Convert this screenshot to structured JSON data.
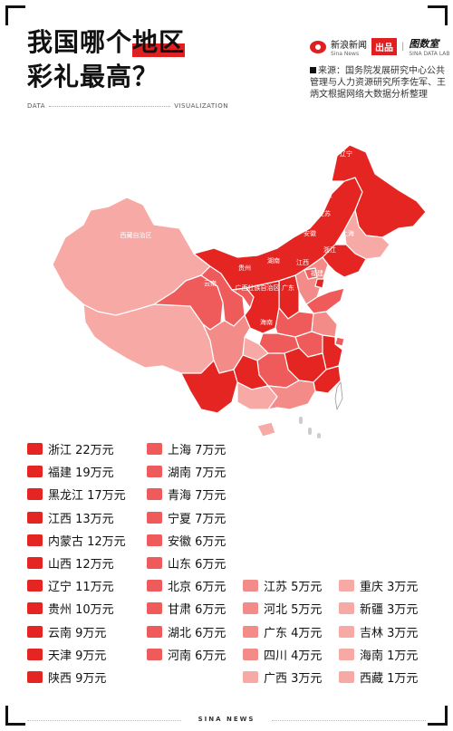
{
  "title": {
    "line1_a": "我国哪个",
    "line1_hl": "地区",
    "line2": "彩礼最高？"
  },
  "brand": {
    "name": "新浪新闻",
    "sub": "Sina News",
    "badge": "出品",
    "partner": "图数室",
    "partner_sub": "SINA DATA LAB"
  },
  "source": "来源：国务院发展研究中心公共管理与人力资源研究所李佐军、王炳文根据网络大数据分析整理",
  "divider": {
    "left": "DATA",
    "right": "VISUALIZATION"
  },
  "footer": "SINA NEWS",
  "colors": {
    "accent": "#e02020",
    "t22": "#e52521",
    "t7": "#ef5a5a",
    "t5": "#f38b88",
    "t3": "#f7a9a6"
  },
  "map_labels": [
    {
      "name": "新疆维吾尔自治区",
      "key": "xinjiang"
    },
    {
      "name": "西藏自治区",
      "key": "xizang"
    },
    {
      "name": "青海",
      "key": "qinghai"
    },
    {
      "name": "内蒙古自治区",
      "key": "neimenggu"
    },
    {
      "name": "黑龙江",
      "key": "heilongjiang"
    },
    {
      "name": "吉林",
      "key": "jilin"
    },
    {
      "name": "辽宁",
      "key": "liaoning"
    },
    {
      "name": "北京",
      "key": "beijing"
    },
    {
      "name": "天津",
      "key": "tianjin"
    },
    {
      "name": "河北",
      "key": "hebei"
    },
    {
      "name": "山西",
      "key": "shanxi"
    },
    {
      "name": "山东",
      "key": "shandong"
    },
    {
      "name": "宁夏回族自治区",
      "key": "ningxia"
    },
    {
      "name": "甘肃",
      "key": "gansu"
    },
    {
      "name": "陕西",
      "key": "shaanxi"
    },
    {
      "name": "河南",
      "key": "henan"
    },
    {
      "name": "江苏",
      "key": "jiangsu"
    },
    {
      "name": "安徽",
      "key": "anhui"
    },
    {
      "name": "上海",
      "key": "shanghai"
    },
    {
      "name": "四川",
      "key": "sichuan"
    },
    {
      "name": "重庆",
      "key": "chongqing"
    },
    {
      "name": "湖北",
      "key": "hubei"
    },
    {
      "name": "浙江",
      "key": "zhejiang"
    },
    {
      "name": "贵州",
      "key": "guizhou"
    },
    {
      "name": "湖南",
      "key": "hunan"
    },
    {
      "name": "江西",
      "key": "jiangxi"
    },
    {
      "name": "福建",
      "key": "fujian"
    },
    {
      "name": "云南",
      "key": "yunnan"
    },
    {
      "name": "广西壮族自治区",
      "key": "guangxi"
    },
    {
      "name": "广东",
      "key": "guangdong"
    },
    {
      "name": "海南",
      "key": "hainan"
    }
  ],
  "chart_data": {
    "type": "choropleth",
    "unit": "万元",
    "columns": [
      [
        {
          "region": "浙江",
          "value": 22,
          "label": "22万元"
        },
        {
          "region": "福建",
          "value": 19,
          "label": "19万元"
        },
        {
          "region": "黑龙江",
          "value": 17,
          "label": "17万元"
        },
        {
          "region": "江西",
          "value": 13,
          "label": "13万元"
        },
        {
          "region": "内蒙古",
          "value": 12,
          "label": "12万元"
        },
        {
          "region": "山西",
          "value": 12,
          "label": "12万元"
        },
        {
          "region": "辽宁",
          "value": 11,
          "label": "11万元"
        },
        {
          "region": "贵州",
          "value": 10,
          "label": "10万元"
        },
        {
          "region": "云南",
          "value": 9,
          "label": "9万元"
        },
        {
          "region": "天津",
          "value": 9,
          "label": "9万元"
        },
        {
          "region": "陕西",
          "value": 9,
          "label": "9万元"
        }
      ],
      [
        {
          "region": "上海",
          "value": 7,
          "label": "7万元"
        },
        {
          "region": "湖南",
          "value": 7,
          "label": "7万元"
        },
        {
          "region": "青海",
          "value": 7,
          "label": "7万元"
        },
        {
          "region": "宁夏",
          "value": 7,
          "label": "7万元"
        },
        {
          "region": "安徽",
          "value": 6,
          "label": "6万元"
        },
        {
          "region": "山东",
          "value": 6,
          "label": "6万元"
        },
        {
          "region": "北京",
          "value": 6,
          "label": "6万元"
        },
        {
          "region": "甘肃",
          "value": 6,
          "label": "6万元"
        },
        {
          "region": "湖北",
          "value": 6,
          "label": "6万元"
        },
        {
          "region": "河南",
          "value": 6,
          "label": "6万元"
        }
      ],
      [
        {
          "region": "江苏",
          "value": 5,
          "label": "5万元"
        },
        {
          "region": "河北",
          "value": 5,
          "label": "5万元"
        },
        {
          "region": "广东",
          "value": 4,
          "label": "4万元"
        },
        {
          "region": "四川",
          "value": 4,
          "label": "4万元"
        },
        {
          "region": "广西",
          "value": 3,
          "label": "3万元"
        }
      ],
      [
        {
          "region": "重庆",
          "value": 3,
          "label": "3万元"
        },
        {
          "region": "新疆",
          "value": 3,
          "label": "3万元"
        },
        {
          "region": "吉林",
          "value": 3,
          "label": "3万元"
        },
        {
          "region": "海南",
          "value": 1,
          "label": "1万元"
        },
        {
          "region": "西藏",
          "value": 1,
          "label": "1万元"
        }
      ]
    ]
  }
}
